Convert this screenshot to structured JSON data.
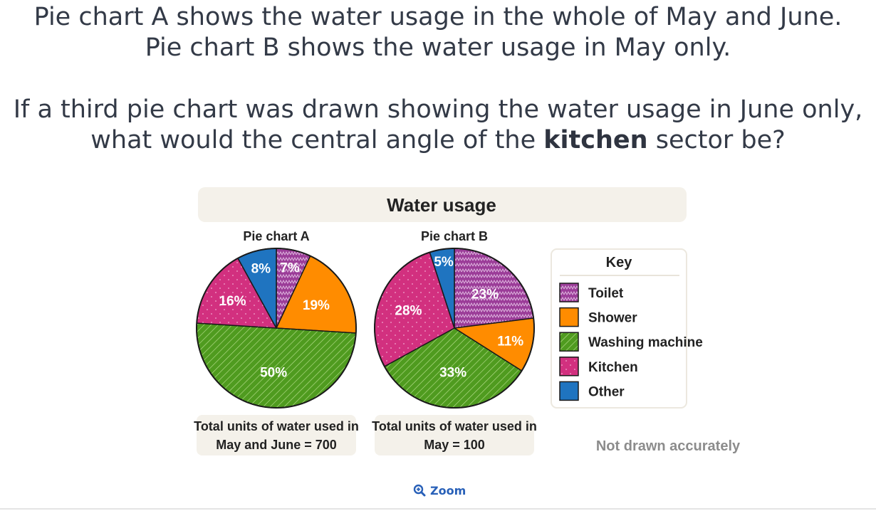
{
  "question": {
    "line1": "Pie chart A shows the water usage in the whole of May and June.",
    "line2": "Pie chart B shows the water usage in May only.",
    "line3": "If a third pie chart was drawn showing the water usage in June only,",
    "line4_pre": "what would the central angle of the ",
    "line4_bold": "kitchen",
    "line4_post": " sector be?"
  },
  "zoom": {
    "label": "Zoom",
    "icon": "zoom-in-icon"
  },
  "colors": {
    "toilet": "#9b3c98",
    "shower": "#ff8c00",
    "washing": "#4f9b1f",
    "kitchen": "#d2307f",
    "other": "#1f74c0",
    "panel": "#f4f1ea"
  },
  "chart_data": {
    "type": "pie",
    "title": "Water usage",
    "categories": [
      "Toilet",
      "Shower",
      "Washing machine",
      "Kitchen",
      "Other"
    ],
    "series": [
      {
        "name": "Pie chart A",
        "values": [
          7,
          19,
          50,
          16,
          8
        ],
        "unit": "%",
        "caption": [
          "Total units of water used in",
          "May and June = 700"
        ]
      },
      {
        "name": "Pie chart B",
        "values": [
          23,
          11,
          33,
          28,
          5
        ],
        "unit": "%",
        "caption": [
          "Total units of water used in",
          "May = 100"
        ]
      }
    ],
    "legend": {
      "title": "Key",
      "position": "right"
    },
    "note": "Not drawn accurately"
  }
}
